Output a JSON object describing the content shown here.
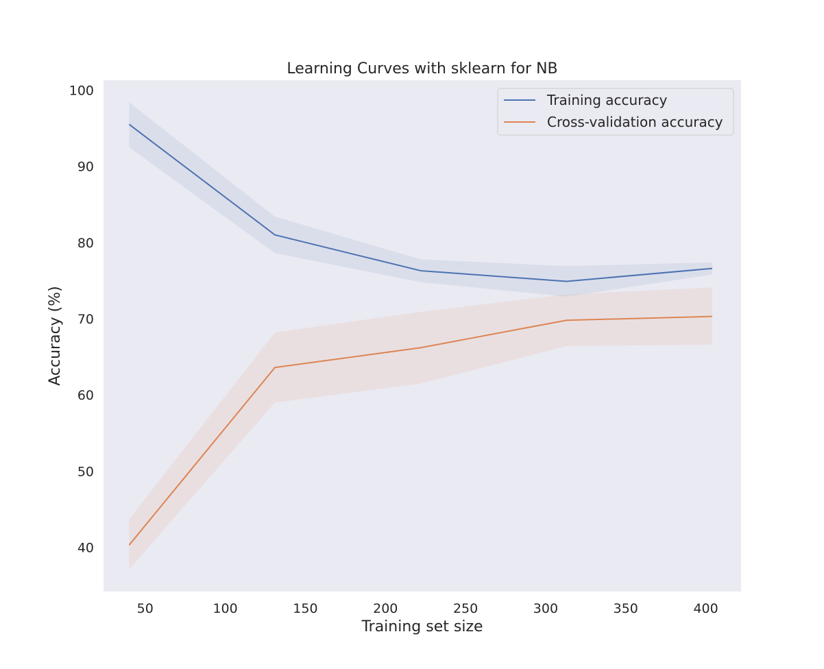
{
  "chart_data": {
    "type": "line",
    "title": "Learning Curves with sklearn for NB",
    "xlabel": "Training set size",
    "ylabel": "Accuracy (%)",
    "xlim": [
      24,
      422
    ],
    "ylim": [
      34.2,
      101.3
    ],
    "xticks": [
      50,
      100,
      150,
      200,
      250,
      300,
      350,
      400
    ],
    "yticks": [
      40,
      50,
      60,
      70,
      80,
      90,
      100
    ],
    "grid": false,
    "legend_position": "top-right",
    "x": [
      40,
      131,
      222,
      313,
      404
    ],
    "series": [
      {
        "name": "Training accuracy",
        "color": "#4c72b0",
        "band_color": "#4c72b0",
        "values": [
          95.5,
          81.0,
          76.3,
          74.9,
          76.6
        ],
        "lower": [
          92.5,
          78.6,
          74.8,
          72.9,
          75.8
        ],
        "upper": [
          98.4,
          83.4,
          77.8,
          76.9,
          77.4
        ]
      },
      {
        "name": "Cross-validation accuracy",
        "color": "#dd8452",
        "band_color": "#dd8452",
        "values": [
          40.3,
          63.6,
          66.2,
          69.8,
          70.3
        ],
        "lower": [
          37.1,
          59.0,
          61.5,
          66.4,
          66.6
        ],
        "upper": [
          43.7,
          68.2,
          70.9,
          73.2,
          74.1
        ]
      }
    ]
  }
}
